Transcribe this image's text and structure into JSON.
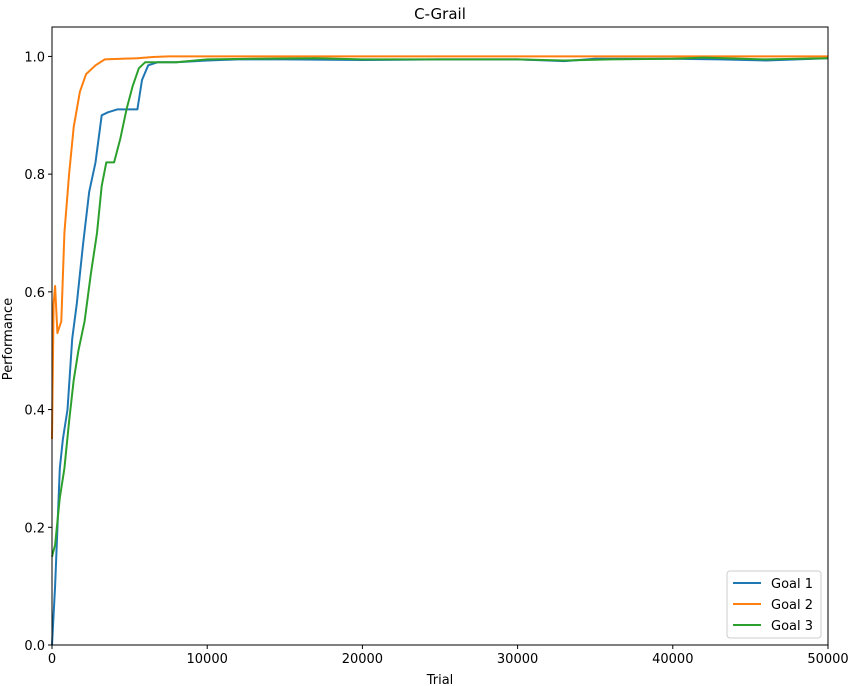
{
  "chart_data": {
    "type": "line",
    "title": "C-Grail",
    "xlabel": "Trial",
    "ylabel": "Performance",
    "xlim": [
      0,
      50000
    ],
    "ylim": [
      0.0,
      1.05
    ],
    "xticks": [
      0,
      10000,
      20000,
      30000,
      40000,
      50000
    ],
    "yticks": [
      0.0,
      0.2,
      0.4,
      0.6,
      0.8,
      1.0
    ],
    "xtick_labels": [
      "0",
      "10000",
      "20000",
      "30000",
      "40000",
      "50000"
    ],
    "ytick_labels": [
      "0.0",
      "0.2",
      "0.4",
      "0.6",
      "0.8",
      "1.0"
    ],
    "grid": false,
    "legend_position": "bottom-right",
    "series": [
      {
        "name": "Goal 1",
        "color": "#1f77b4",
        "points": [
          [
            0,
            0.0
          ],
          [
            200,
            0.1
          ],
          [
            500,
            0.3
          ],
          [
            700,
            0.35
          ],
          [
            1000,
            0.4
          ],
          [
            1300,
            0.52
          ],
          [
            1600,
            0.58
          ],
          [
            2000,
            0.68
          ],
          [
            2400,
            0.77
          ],
          [
            2800,
            0.82
          ],
          [
            3200,
            0.9
          ],
          [
            3600,
            0.905
          ],
          [
            4200,
            0.91
          ],
          [
            4700,
            0.91
          ],
          [
            5200,
            0.91
          ],
          [
            5500,
            0.91
          ],
          [
            5800,
            0.96
          ],
          [
            6200,
            0.985
          ],
          [
            6800,
            0.99
          ],
          [
            8000,
            0.99
          ],
          [
            10000,
            0.993
          ],
          [
            12000,
            0.995
          ],
          [
            15000,
            0.995
          ],
          [
            20000,
            0.994
          ],
          [
            25000,
            0.995
          ],
          [
            30000,
            0.995
          ],
          [
            33000,
            0.992
          ],
          [
            35000,
            0.996
          ],
          [
            40000,
            0.996
          ],
          [
            43000,
            0.995
          ],
          [
            46000,
            0.993
          ],
          [
            50000,
            0.997
          ]
        ]
      },
      {
        "name": "Goal 2",
        "color": "#ff7f0e",
        "points": [
          [
            0,
            0.35
          ],
          [
            100,
            0.58
          ],
          [
            200,
            0.61
          ],
          [
            350,
            0.53
          ],
          [
            600,
            0.55
          ],
          [
            800,
            0.7
          ],
          [
            1100,
            0.8
          ],
          [
            1400,
            0.88
          ],
          [
            1800,
            0.94
          ],
          [
            2200,
            0.97
          ],
          [
            2800,
            0.985
          ],
          [
            3400,
            0.995
          ],
          [
            4500,
            0.996
          ],
          [
            5500,
            0.997
          ],
          [
            6500,
            0.999
          ],
          [
            7500,
            1.0
          ],
          [
            10000,
            1.0
          ],
          [
            20000,
            1.0
          ],
          [
            30000,
            1.0
          ],
          [
            40000,
            1.0
          ],
          [
            50000,
            1.0
          ]
        ]
      },
      {
        "name": "Goal 3",
        "color": "#2ca02c",
        "points": [
          [
            0,
            0.15
          ],
          [
            200,
            0.17
          ],
          [
            500,
            0.25
          ],
          [
            800,
            0.3
          ],
          [
            1100,
            0.38
          ],
          [
            1400,
            0.45
          ],
          [
            1700,
            0.5
          ],
          [
            2100,
            0.55
          ],
          [
            2500,
            0.63
          ],
          [
            2900,
            0.7
          ],
          [
            3200,
            0.78
          ],
          [
            3500,
            0.82
          ],
          [
            4000,
            0.82
          ],
          [
            4400,
            0.86
          ],
          [
            4800,
            0.91
          ],
          [
            5200,
            0.95
          ],
          [
            5600,
            0.98
          ],
          [
            6000,
            0.99
          ],
          [
            7000,
            0.99
          ],
          [
            8000,
            0.99
          ],
          [
            10000,
            0.995
          ],
          [
            13000,
            0.996
          ],
          [
            17000,
            0.997
          ],
          [
            20000,
            0.995
          ],
          [
            25000,
            0.995
          ],
          [
            30000,
            0.995
          ],
          [
            33000,
            0.993
          ],
          [
            36000,
            0.995
          ],
          [
            40000,
            0.996
          ],
          [
            42000,
            0.998
          ],
          [
            46000,
            0.995
          ],
          [
            50000,
            0.997
          ]
        ]
      }
    ]
  }
}
